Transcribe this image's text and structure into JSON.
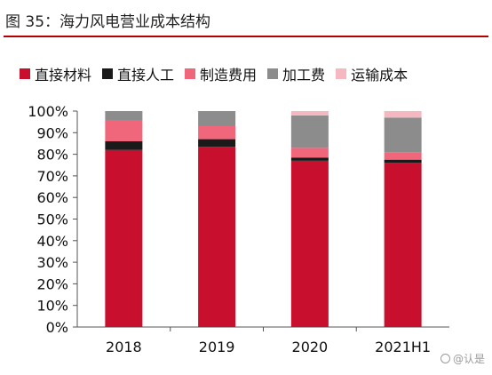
{
  "figure": {
    "title": "图 35：海力风电营业成本结构",
    "watermark": "@认是"
  },
  "chart_data": {
    "type": "bar",
    "stacked": true,
    "categories": [
      "2018",
      "2019",
      "2020",
      "2021H1"
    ],
    "series": [
      {
        "name": "直接材料",
        "color": "#c8102e",
        "values": [
          82,
          83.5,
          77,
          76
        ]
      },
      {
        "name": "直接人工",
        "color": "#1a1a1a",
        "values": [
          4,
          3.5,
          1.5,
          1.5
        ]
      },
      {
        "name": "制造费用",
        "color": "#f0677c",
        "values": [
          9.5,
          6,
          4.5,
          3.5
        ]
      },
      {
        "name": "加工费",
        "color": "#8c8c8c",
        "values": [
          4.5,
          7,
          15,
          16
        ]
      },
      {
        "name": "运输成本",
        "color": "#f6b8c0",
        "values": [
          0,
          0,
          2,
          3
        ]
      }
    ],
    "y_ticks": [
      "0%",
      "10%",
      "20%",
      "30%",
      "40%",
      "50%",
      "60%",
      "70%",
      "80%",
      "90%",
      "100%"
    ],
    "ylim": [
      0,
      100
    ],
    "grid": false,
    "legend_position": "top"
  }
}
